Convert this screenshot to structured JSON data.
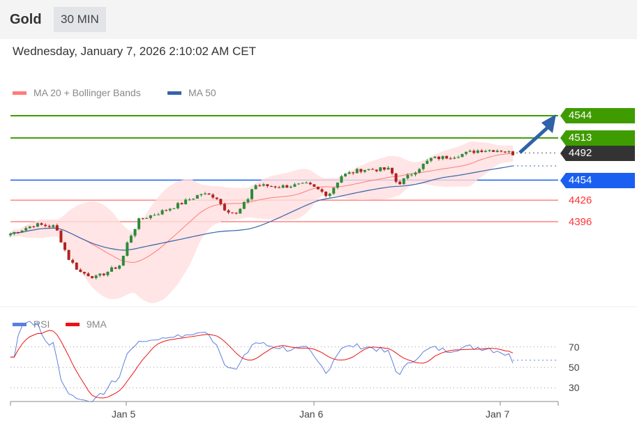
{
  "header": {
    "title": "Gold",
    "timeframe": "30 MIN"
  },
  "datetime": "Wednesday, January 7, 2026 2:10:02 AM CET",
  "legend": {
    "ma20": "MA 20 + Bollinger Bands",
    "ma50": "MA 50",
    "rsi": "RSI",
    "ma9": "9MA"
  },
  "colors": {
    "resistance": "#3f9c00",
    "support": "#1a5ff0",
    "current": "#333333",
    "minor": "#ff4444",
    "ma20": "#ff7b7b",
    "ma50": "#3563a8",
    "rsi": "#5b7fe0",
    "ma9": "#ee1111",
    "band": "#ffdede",
    "up": "#2e8b3a",
    "down": "#b22222"
  },
  "levels": {
    "r2": "4544",
    "r1": "4513",
    "current": "4492",
    "s1": "4454",
    "s2": "4426",
    "s3": "4396"
  },
  "rsi_axis": [
    "70",
    "50",
    "30"
  ],
  "x_labels": [
    "Jan 5",
    "Jan 6",
    "Jan 7"
  ],
  "chart_data": {
    "type": "candlestick",
    "x_unit": "day of January 2026 (fractional)",
    "ylim": [
      4300,
      4560
    ],
    "price_path": [
      [
        4.38,
        4379
      ],
      [
        4.51,
        4392
      ],
      [
        4.62,
        4389
      ],
      [
        4.69,
        4345
      ],
      [
        4.75,
        4326
      ],
      [
        4.84,
        4318
      ],
      [
        4.97,
        4336
      ],
      [
        5.01,
        4370
      ],
      [
        5.07,
        4399
      ],
      [
        5.18,
        4409
      ],
      [
        5.29,
        4421
      ],
      [
        5.4,
        4435
      ],
      [
        5.48,
        4431
      ],
      [
        5.52,
        4415
      ],
      [
        5.59,
        4406
      ],
      [
        5.65,
        4428
      ],
      [
        5.68,
        4447
      ],
      [
        5.82,
        4445
      ],
      [
        5.97,
        4448
      ],
      [
        6.08,
        4433
      ],
      [
        6.15,
        4460
      ],
      [
        6.26,
        4469
      ],
      [
        6.41,
        4469
      ],
      [
        6.45,
        4448
      ],
      [
        6.52,
        4462
      ],
      [
        6.63,
        4484
      ],
      [
        6.74,
        4487
      ],
      [
        6.89,
        4496
      ],
      [
        7.0,
        4496
      ],
      [
        7.08,
        4490
      ]
    ],
    "rsi_ylim": [
      20,
      80
    ],
    "rsi_ticks": [
      70,
      50,
      30
    ],
    "rsi_current": 57
  }
}
